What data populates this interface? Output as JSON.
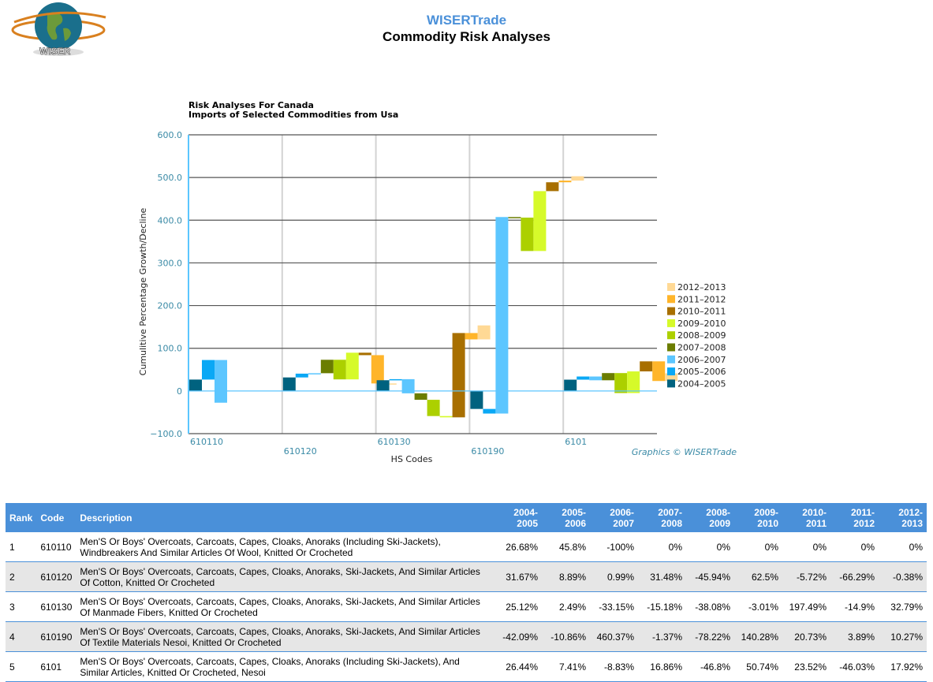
{
  "header": {
    "brand": "WISERTrade",
    "title": "Commodity Risk Analyses",
    "logo_text": "WISER"
  },
  "chart_data": {
    "type": "bar",
    "subtype": "waterfall-cumulative",
    "title": "Risk Analyses For Canada",
    "subtitle": "Imports of Selected Commodities from Usa",
    "xlabel": "HS Codes",
    "ylabel": "Cumulitive Percentage Growth/Decline",
    "ylim": [
      -100,
      600
    ],
    "yticks": [
      "600.0",
      "500.0",
      "400.0",
      "300.0",
      "200.0",
      "100.0",
      "0",
      "−100.0"
    ],
    "ytick_values": [
      600,
      500,
      400,
      300,
      200,
      100,
      0,
      -100
    ],
    "grid": true,
    "legend_position": "right",
    "credit": "Graphics © WISERTrade",
    "categories": [
      "610110",
      "610120",
      "610130",
      "610190",
      "6101"
    ],
    "series": [
      {
        "name": "2004–2005",
        "color": "#00627f",
        "values": [
          26.68,
          31.67,
          25.12,
          -42.09,
          26.44
        ]
      },
      {
        "name": "2005–2006",
        "color": "#0aa8f5",
        "values": [
          45.8,
          8.89,
          2.49,
          -10.86,
          7.41
        ]
      },
      {
        "name": "2006–2007",
        "color": "#5cc6ff",
        "values": [
          -100,
          0.99,
          -33.15,
          460.37,
          -8.83
        ]
      },
      {
        "name": "2007–2008",
        "color": "#6b7d00",
        "values": [
          0,
          31.48,
          -15.18,
          -1.37,
          16.86
        ]
      },
      {
        "name": "2008–2009",
        "color": "#acd000",
        "values": [
          0,
          -45.94,
          -38.08,
          -78.22,
          -46.8
        ]
      },
      {
        "name": "2009–2010",
        "color": "#d6fa2a",
        "values": [
          0,
          62.5,
          -3.01,
          140.28,
          50.74
        ]
      },
      {
        "name": "2010–2011",
        "color": "#a86f00",
        "values": [
          0,
          -5.72,
          197.49,
          20.73,
          23.52
        ]
      },
      {
        "name": "2011–2012",
        "color": "#ffb52a",
        "values": [
          0,
          -66.29,
          -14.9,
          3.89,
          -46.03
        ]
      },
      {
        "name": "2012–2013",
        "color": "#ffd995",
        "values": [
          0,
          -0.38,
          32.79,
          10.27,
          17.92
        ]
      }
    ]
  },
  "table": {
    "headers": {
      "rank": "Rank",
      "code": "Code",
      "description": "Description",
      "periods": [
        "2004-\n2005",
        "2005-\n2006",
        "2006-\n2007",
        "2007-\n2008",
        "2008-\n2009",
        "2009-\n2010",
        "2010-\n2011",
        "2011-\n2012",
        "2012-\n2013"
      ]
    },
    "rows": [
      {
        "rank": "1",
        "code": "610110",
        "description": "Men'S Or Boys' Overcoats, Carcoats, Capes, Cloaks, Anoraks (Including Ski-Jackets), Windbreakers And Similar Articles Of Wool, Knitted Or Crocheted",
        "values": [
          "26.68%",
          "45.8%",
          "-100%",
          "0%",
          "0%",
          "0%",
          "0%",
          "0%",
          "0%"
        ]
      },
      {
        "rank": "2",
        "code": "610120",
        "description": "Men'S Or Boys' Overcoats, Carcoats, Capes, Cloaks, Anoraks, Ski-Jackets, And Similar Articles Of Cotton, Knitted Or Crocheted",
        "values": [
          "31.67%",
          "8.89%",
          "0.99%",
          "31.48%",
          "-45.94%",
          "62.5%",
          "-5.72%",
          "-66.29%",
          "-0.38%"
        ]
      },
      {
        "rank": "3",
        "code": "610130",
        "description": "Men'S Or Boys' Overcoats, Carcoats, Capes, Cloaks, Anoraks, Ski-Jackets, And Similar Articles Of Manmade Fibers, Knitted Or Crocheted",
        "values": [
          "25.12%",
          "2.49%",
          "-33.15%",
          "-15.18%",
          "-38.08%",
          "-3.01%",
          "197.49%",
          "-14.9%",
          "32.79%"
        ]
      },
      {
        "rank": "4",
        "code": "610190",
        "description": "Men'S Or Boys' Overcoats, Carcoats, Capes, Cloaks, Anoraks, Ski-Jackets, And Similar Articles Of Textile Materials Nesoi, Knitted Or Crocheted",
        "values": [
          "-42.09%",
          "-10.86%",
          "460.37%",
          "-1.37%",
          "-78.22%",
          "140.28%",
          "20.73%",
          "3.89%",
          "10.27%"
        ]
      },
      {
        "rank": "5",
        "code": "6101",
        "description": "Men'S Or Boys' Overcoats, Carcoats, Capes, Cloaks, Anoraks (Including Ski-Jackets), And Similar Articles, Knitted Or Crocheted, Nesoi",
        "values": [
          "26.44%",
          "7.41%",
          "-8.83%",
          "16.86%",
          "-46.8%",
          "50.74%",
          "23.52%",
          "-46.03%",
          "17.92%"
        ]
      }
    ]
  }
}
